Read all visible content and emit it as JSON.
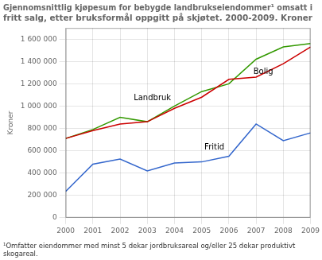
{
  "chart_data": {
    "type": "line",
    "title": "Gjennomsnittlig kjøpesum for bebygde landbrukseiendommer¹ omsatt i\nfritt salg, etter bruksformål oppgitt på skjøtet. 2000-2009. Kroner",
    "y_label": "Kroner",
    "footnote": "¹Omfatter eiendommer med minst 5 dekar jordbruksareal og/eller 25 dekar produktivt\nskogareal.",
    "x": [
      2000,
      2001,
      2002,
      2003,
      2004,
      2005,
      2006,
      2007,
      2008,
      2009
    ],
    "series": [
      {
        "color": "#cc0000",
        "values": [
          710000,
          780000,
          840000,
          860000,
          980000,
          1080000,
          1240000,
          1260000,
          1380000,
          1530000
        ]
      },
      {
        "color": "#339900",
        "values": [
          710000,
          790000,
          900000,
          860000,
          1000000,
          1130000,
          1200000,
          1420000,
          1530000,
          1560000
        ]
      },
      {
        "color": "#3366cc",
        "values": [
          235000,
          480000,
          525000,
          420000,
          490000,
          500000,
          550000,
          840000,
          690000,
          760000
        ]
      }
    ],
    "annotations": [
      {
        "text": "Landbruk",
        "x": 2002.5,
        "y": 1050000
      },
      {
        "text": "Bolig",
        "x": 2006.9,
        "y": 1285000
      },
      {
        "text": "Fritid",
        "x": 2005.1,
        "y": 610000
      }
    ],
    "xlim": [
      2000,
      2009
    ],
    "xticks": [
      2000,
      2001,
      2002,
      2003,
      2004,
      2005,
      2006,
      2007,
      2008,
      2009
    ],
    "ylim": [
      0,
      1700000
    ],
    "yticks": [
      0,
      {
        "value": 200000,
        "label": "200 000"
      },
      {
        "value": 400000,
        "label": "400 000"
      },
      {
        "value": 600000,
        "label": "600 000"
      },
      {
        "value": 800000,
        "label": "800 000"
      },
      {
        "value": 1000000,
        "label": "1 000 000"
      },
      {
        "value": 1200000,
        "label": "1 200 000"
      },
      {
        "value": 1400000,
        "label": "1 400 000"
      },
      {
        "value": 1600000,
        "label": "1 600 000"
      }
    ],
    "grid": true
  }
}
